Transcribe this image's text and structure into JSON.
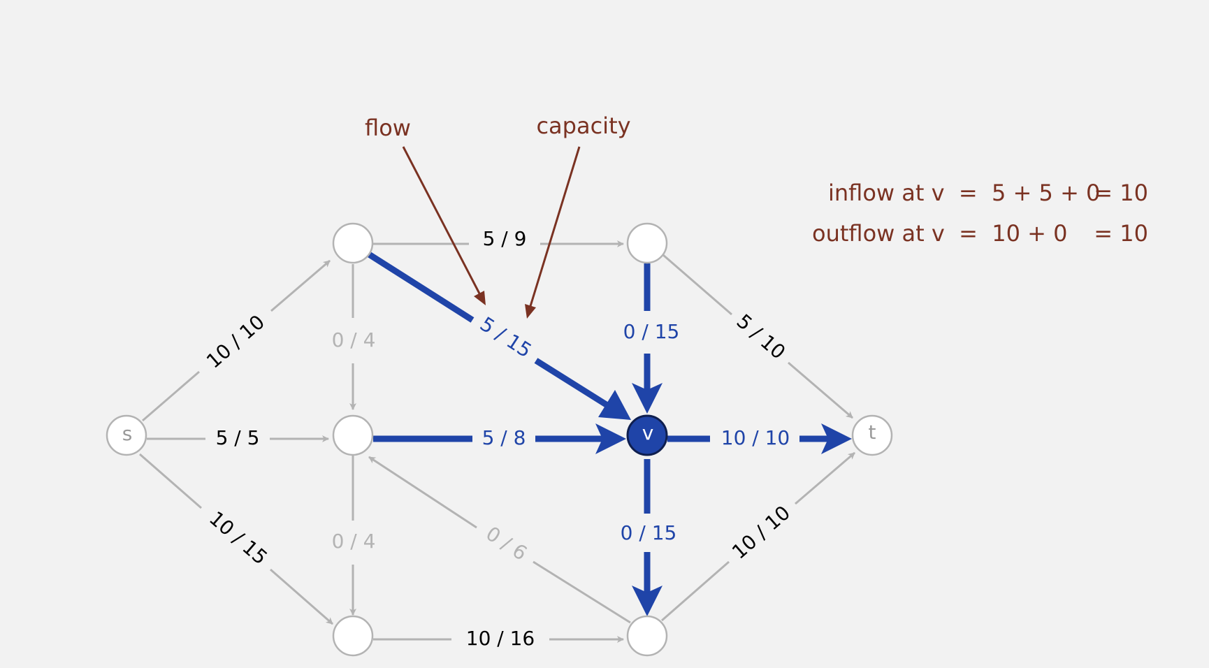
{
  "colors": {
    "background": "#f2f2f2",
    "gray_edge": "#b3b3b3",
    "blue_edge": "#1f44a8",
    "annotation": "#7a3222",
    "node_fill": "#ffffff",
    "node_v_fill": "#1f44a8"
  },
  "annotations": {
    "flow": "flow",
    "capacity": "capacity"
  },
  "equations": {
    "inflow_left": "inflow at v  =  5 + 5 + 0",
    "inflow_right": "= 10",
    "outflow_left": "outflow at v  =  10 + 0",
    "outflow_right": "= 10"
  },
  "nodes": {
    "s": "s",
    "v": "v",
    "t": "t"
  },
  "edges": [
    {
      "id": "s-a",
      "label": "10 / 10",
      "style": "black"
    },
    {
      "id": "s-b",
      "label": "5 / 5",
      "style": "black"
    },
    {
      "id": "s-c",
      "label": "10 / 15",
      "style": "black"
    },
    {
      "id": "a-d",
      "label": "5 / 9",
      "style": "black"
    },
    {
      "id": "a-b",
      "label": "0 / 4",
      "style": "gray"
    },
    {
      "id": "a-v",
      "label": "5 / 15",
      "style": "blue"
    },
    {
      "id": "b-v",
      "label": "5 / 8",
      "style": "blue"
    },
    {
      "id": "b-c",
      "label": "0 / 4",
      "style": "gray"
    },
    {
      "id": "e-b",
      "label": "0 / 6",
      "style": "gray"
    },
    {
      "id": "d-v",
      "label": "0 / 15",
      "style": "blue"
    },
    {
      "id": "d-t",
      "label": "5 / 10",
      "style": "black"
    },
    {
      "id": "v-t",
      "label": "10 / 10",
      "style": "blue"
    },
    {
      "id": "v-e",
      "label": "0 / 15",
      "style": "blue"
    },
    {
      "id": "c-e",
      "label": "10 / 16",
      "style": "black"
    },
    {
      "id": "e-t",
      "label": "10 / 10",
      "style": "black"
    }
  ]
}
